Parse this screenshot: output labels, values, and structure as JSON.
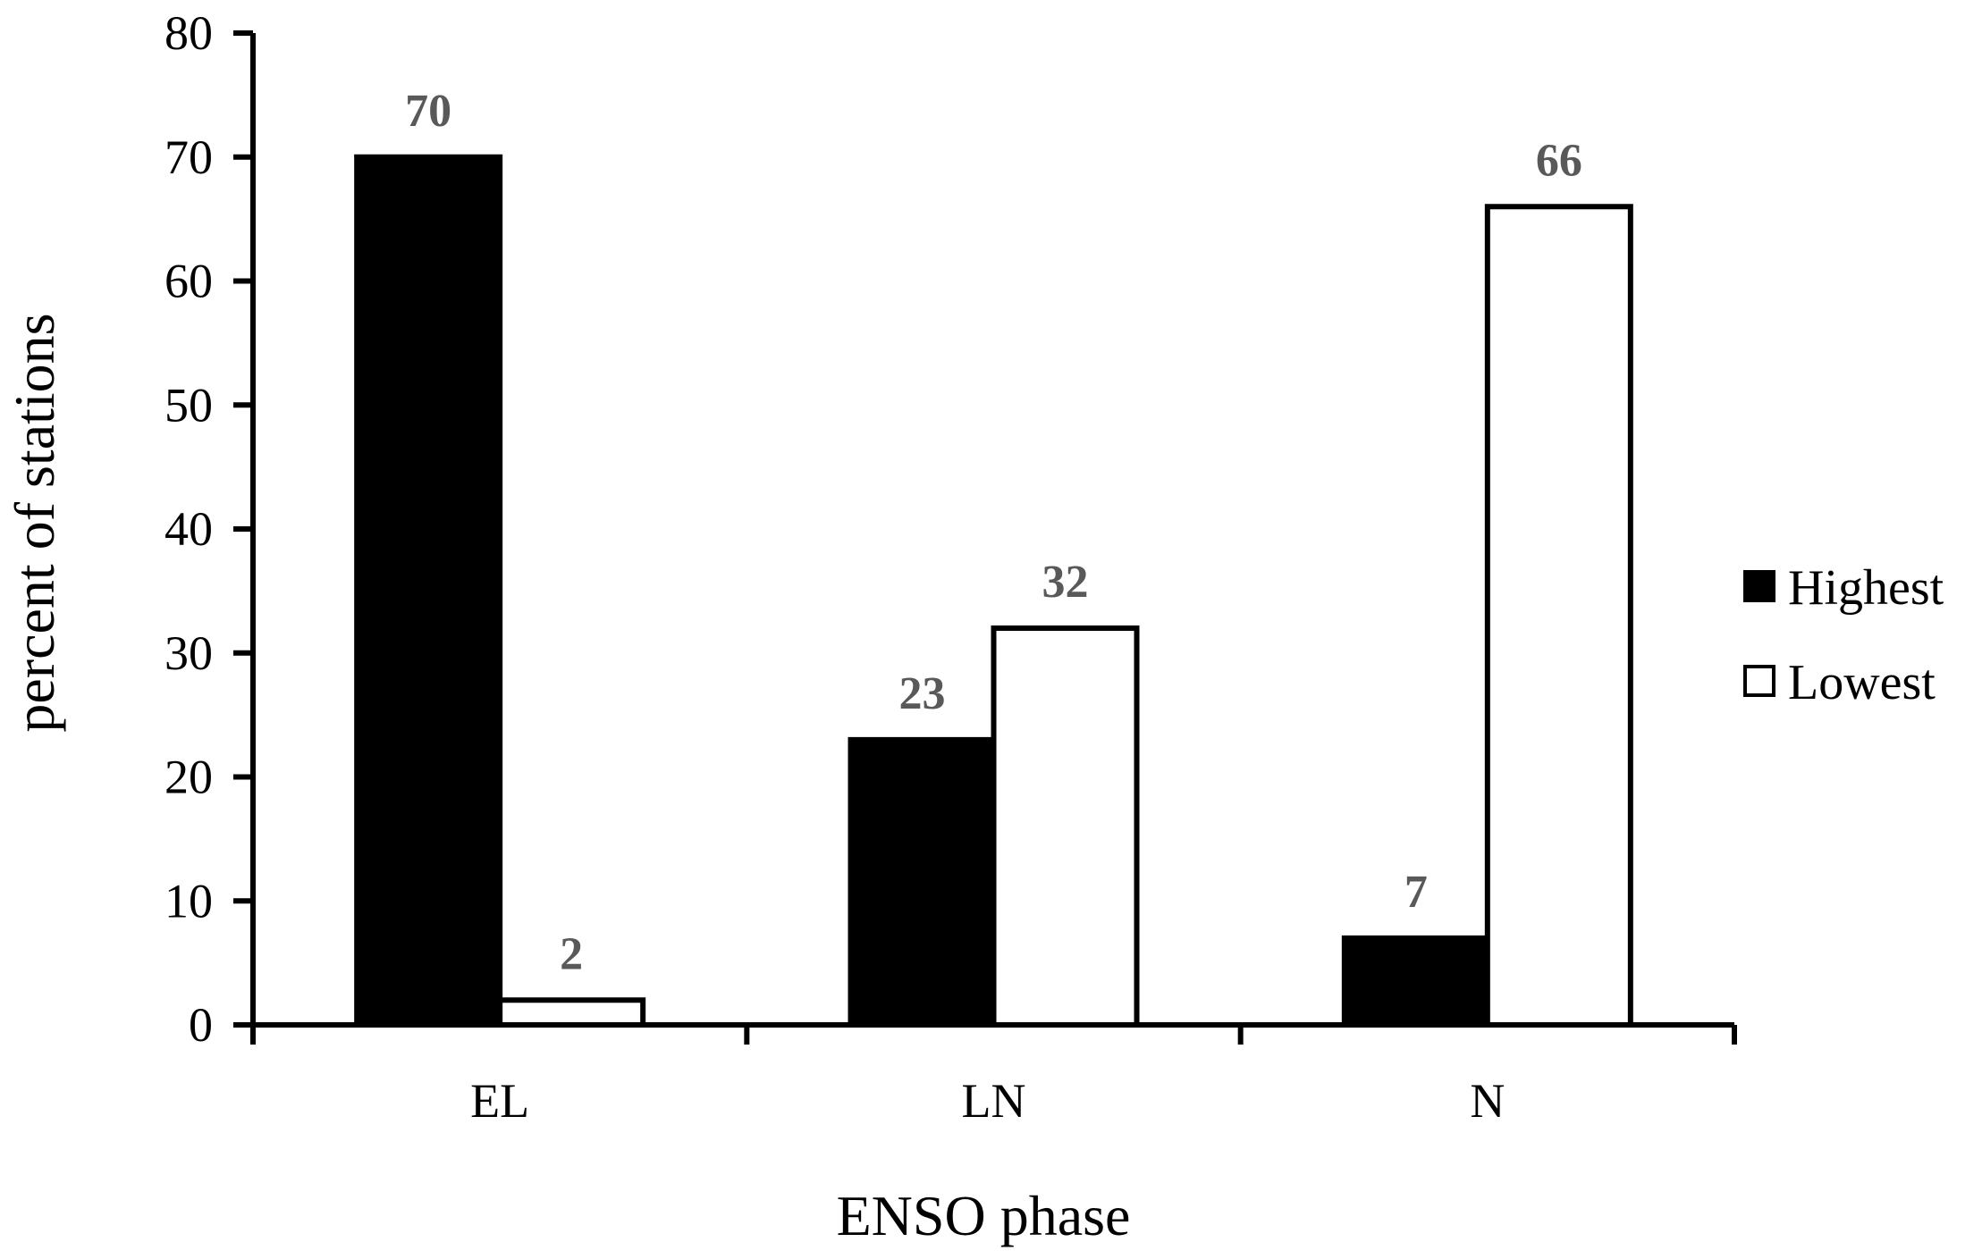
{
  "chart_data": {
    "type": "bar",
    "xlabel": "ENSO phase",
    "ylabel": "percent of stations",
    "categories": [
      "EL",
      "LN",
      "N"
    ],
    "series": [
      {
        "name": "Highest",
        "values": [
          70,
          23,
          7
        ],
        "color": "#000000"
      },
      {
        "name": "Lowest",
        "values": [
          2,
          32,
          66
        ],
        "color": "#ffffff"
      }
    ],
    "ylim": [
      0,
      80
    ],
    "yticks": [
      0,
      10,
      20,
      30,
      40,
      50,
      60,
      70,
      80
    ],
    "grid": false,
    "legend_position": "right",
    "data_labels": true,
    "data_label_color": "#595959"
  }
}
